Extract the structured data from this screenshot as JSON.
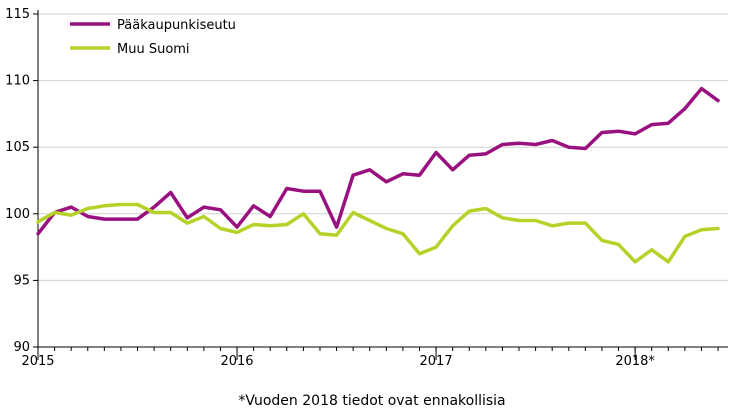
{
  "chart_data": {
    "type": "line",
    "title": "",
    "xlabel": "",
    "ylabel": "",
    "ylim": [
      90,
      115
    ],
    "yticks": [
      90,
      95,
      100,
      105,
      110,
      115
    ],
    "xlim": [
      0,
      41.6
    ],
    "xticks": [
      {
        "pos": 0,
        "label": "2015"
      },
      {
        "pos": 12,
        "label": "2016"
      },
      {
        "pos": 24,
        "label": "2017"
      },
      {
        "pos": 36,
        "label": "2018*"
      }
    ],
    "grid": "horizontal",
    "legend": "top-left",
    "x": [
      0,
      1,
      2,
      3,
      4,
      5,
      6,
      7,
      8,
      9,
      10,
      11,
      12,
      13,
      14,
      15,
      16,
      17,
      18,
      19,
      20,
      21,
      22,
      23,
      24,
      25,
      26,
      27,
      28,
      29,
      30,
      31,
      32,
      33,
      34,
      35,
      36,
      37,
      38,
      39,
      40,
      41
    ],
    "series": [
      {
        "name": "Pääkaupunkiseutu",
        "color": "#99117f",
        "values": [
          98.5,
          100.1,
          100.5,
          99.8,
          99.6,
          99.6,
          99.6,
          100.5,
          101.6,
          99.7,
          100.5,
          100.3,
          99.0,
          100.6,
          99.8,
          101.9,
          101.7,
          101.7,
          99.0,
          102.9,
          103.3,
          102.4,
          103.0,
          102.9,
          104.6,
          103.3,
          104.4,
          104.5,
          105.2,
          105.3,
          105.2,
          105.5,
          105.0,
          104.9,
          106.1,
          106.2,
          106.0,
          106.7,
          106.8,
          107.9,
          109.4,
          108.5
        ]
      },
      {
        "name": "Muu Suomi",
        "color": "#b5d228",
        "values": [
          99.4,
          100.1,
          99.9,
          100.4,
          100.6,
          100.7,
          100.7,
          100.1,
          100.1,
          99.3,
          99.8,
          98.9,
          98.6,
          99.2,
          99.1,
          99.2,
          100.0,
          98.5,
          98.4,
          100.1,
          99.5,
          98.9,
          98.5,
          97.0,
          97.5,
          99.1,
          100.2,
          100.4,
          99.7,
          99.5,
          99.5,
          99.1,
          99.3,
          99.3,
          98.0,
          97.7,
          96.4,
          97.3,
          96.4,
          98.3,
          98.8,
          98.9
        ]
      }
    ],
    "footnote": "*Vuoden 2018 tiedot ovat ennakollisia"
  }
}
